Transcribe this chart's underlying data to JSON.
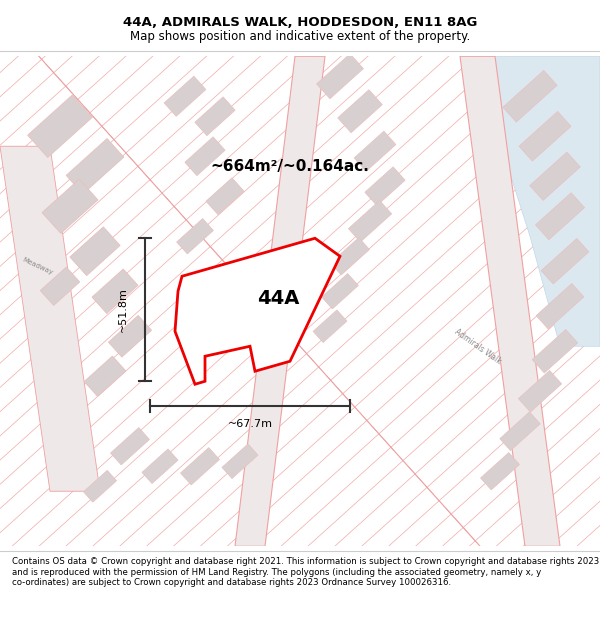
{
  "title": "44A, ADMIRALS WALK, HODDESDON, EN11 8AG",
  "subtitle": "Map shows position and indicative extent of the property.",
  "footer": "Contains OS data © Crown copyright and database right 2021. This information is subject to Crown copyright and database rights 2023 and is reproduced with the permission of HM Land Registry. The polygons (including the associated geometry, namely x, y co-ordinates) are subject to Crown copyright and database rights 2023 Ordnance Survey 100026316.",
  "area_label": "~664m²/~0.164ac.",
  "plot_label": "44A",
  "width_label": "~67.7m",
  "height_label": "~51.8m",
  "map_bg": "#f7f4f4",
  "plot_color": "#ee0000",
  "line_color": "#f0a0a0",
  "building_color": "#d8d0d0",
  "building_edge": "#e8c0c0",
  "road_label_color": "#888888",
  "arrow_color": "#333333",
  "water_color": "#ddeeff",
  "title_fontsize": 9.5,
  "sub_fontsize": 8.5,
  "footer_fontsize": 6.2
}
